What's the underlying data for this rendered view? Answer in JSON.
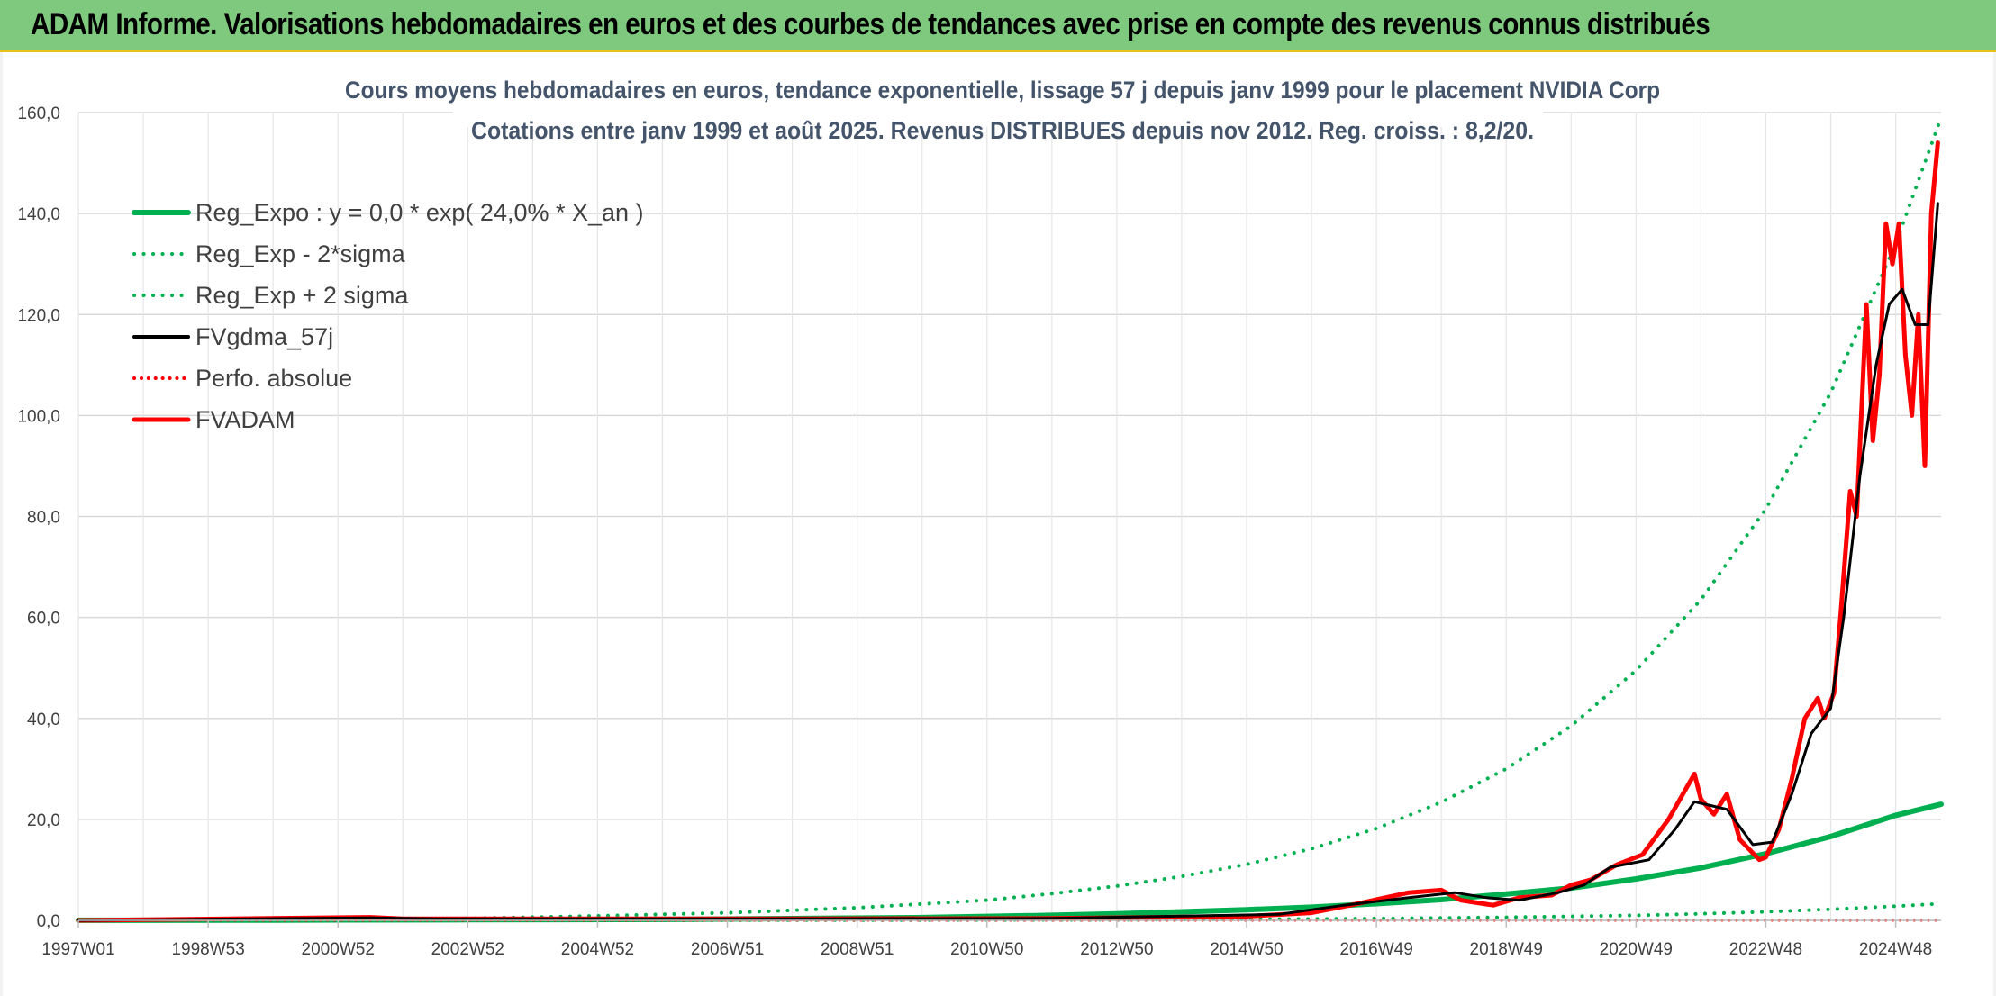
{
  "banner": {
    "title": "ADAM Informe. Valorisations hebdomadaires en euros et des courbes de tendances avec prise en compte des revenus connus distribués",
    "background_color": "#7fc97f"
  },
  "chart_data": {
    "type": "line",
    "title_line1": "Cours moyens hebdomadaires en euros, tendance exponentielle, lissage 57 j depuis janv 1999 pour le placement NVIDIA Corp",
    "title_line2": "Cotations entre janv 1999 et août 2025. Revenus DISTRIBUES depuis nov 2012. Reg. croiss. : 8,2/20.",
    "xlabel": "",
    "ylabel": "",
    "ylim": [
      0,
      160
    ],
    "xlim": [
      1997.0,
      2025.7
    ],
    "y_ticks": [
      "0,0",
      "20,0",
      "40,0",
      "60,0",
      "80,0",
      "100,0",
      "120,0",
      "140,0",
      "160,0"
    ],
    "y_tick_values": [
      0,
      20,
      40,
      60,
      80,
      100,
      120,
      140,
      160
    ],
    "x_ticks": [
      "1997W01",
      "1998W53",
      "2000W52",
      "2002W52",
      "2004W52",
      "2006W51",
      "2008W51",
      "2010W50",
      "2012W50",
      "2014W50",
      "2016W49",
      "2018W49",
      "2020W49",
      "2022W48",
      "2024W48"
    ],
    "x_tick_values": [
      1997.0,
      1999.0,
      2001.0,
      2003.0,
      2005.0,
      2007.0,
      2009.0,
      2011.0,
      2013.0,
      2015.0,
      2017.0,
      2019.0,
      2021.0,
      2023.0,
      2025.0
    ],
    "grid": true,
    "legend_position": "top-left",
    "series": [
      {
        "name": "Reg_Expo : y = 0,0 * exp( 24,0% *  X_an )",
        "color": "#00b050",
        "style": "solid",
        "width": 6,
        "x": [
          1997.0,
          2000.0,
          2003.0,
          2006.0,
          2008.0,
          2010.0,
          2012.0,
          2013.0,
          2014.0,
          2015.0,
          2016.0,
          2017.0,
          2018.0,
          2019.0,
          2020.0,
          2021.0,
          2022.0,
          2023.0,
          2024.0,
          2025.0,
          2025.7
        ],
        "y": [
          0.02,
          0.06,
          0.12,
          0.2,
          0.35,
          0.55,
          1.0,
          1.3,
          1.7,
          2.1,
          2.6,
          3.3,
          4.1,
          5.2,
          6.4,
          8.2,
          10.4,
          13.2,
          16.6,
          20.8,
          23.0
        ]
      },
      {
        "name": "Reg_Exp - 2*sigma",
        "color": "#00b050",
        "style": "dotted",
        "width": 4,
        "x": [
          1997.0,
          2005.0,
          2010.0,
          2013.0,
          2015.0,
          2017.0,
          2019.0,
          2021.0,
          2022.0,
          2023.0,
          2024.0,
          2025.0,
          2025.7
        ],
        "y": [
          0.0,
          0.02,
          0.05,
          0.1,
          0.2,
          0.35,
          0.6,
          1.0,
          1.3,
          1.7,
          2.2,
          2.8,
          3.3
        ]
      },
      {
        "name": "Reg_Exp + 2 sigma",
        "color": "#00b050",
        "style": "dotted",
        "width": 4,
        "x": [
          1997.0,
          2000.0,
          2003.0,
          2005.0,
          2007.0,
          2009.0,
          2011.0,
          2012.0,
          2013.0,
          2014.0,
          2015.0,
          2016.0,
          2017.0,
          2018.0,
          2019.0,
          2020.0,
          2021.0,
          2022.0,
          2023.0,
          2024.0,
          2025.0,
          2025.7
        ],
        "y": [
          0.1,
          0.2,
          0.4,
          0.9,
          1.5,
          2.5,
          4.0,
          5.3,
          6.8,
          8.7,
          11.1,
          14.2,
          18.2,
          23.4,
          30.0,
          38.5,
          49.5,
          63.5,
          81.5,
          104.5,
          134.0,
          159.0
        ]
      },
      {
        "name": "FVgdma_57j",
        "color": "#000000",
        "style": "solid",
        "width": 3,
        "x": [
          1997.0,
          2001.5,
          2002.5,
          2004.0,
          2008.0,
          2012.0,
          2015.5,
          2016.5,
          2017.5,
          2018.2,
          2018.7,
          2019.2,
          2019.8,
          2020.2,
          2020.6,
          2021.2,
          2021.6,
          2021.9,
          2022.4,
          2022.8,
          2023.1,
          2023.4,
          2023.7,
          2024.0,
          2024.2,
          2024.45,
          2024.7,
          2024.9,
          2025.1,
          2025.3,
          2025.5,
          2025.65
        ],
        "y": [
          0.0,
          0.5,
          0.3,
          0.3,
          0.3,
          0.4,
          1.2,
          3.0,
          4.5,
          5.5,
          4.5,
          4.0,
          5.5,
          7.0,
          10.5,
          12.0,
          18.0,
          23.5,
          22.0,
          15.0,
          15.5,
          25.0,
          37.0,
          42.0,
          60.0,
          88.0,
          110.0,
          122.0,
          125.0,
          118.0,
          118.0,
          142.0
        ]
      },
      {
        "name": "Perfo. absolue",
        "color": "#ff0000",
        "style": "dotted",
        "width": 3,
        "x": [
          1997.0,
          2025.7
        ],
        "y": [
          0.0,
          0.0
        ]
      },
      {
        "name": "FVADAM",
        "color": "#ff0000",
        "style": "solid",
        "width": 5,
        "x": [
          1997.0,
          2001.5,
          2002.0,
          2004.0,
          2008.0,
          2012.0,
          2015.0,
          2016.0,
          2016.6,
          2017.5,
          2018.0,
          2018.3,
          2018.8,
          2019.2,
          2019.7,
          2020.0,
          2020.3,
          2020.7,
          2021.1,
          2021.5,
          2021.9,
          2022.0,
          2022.2,
          2022.4,
          2022.6,
          2022.9,
          2023.0,
          2023.2,
          2023.4,
          2023.6,
          2023.8,
          2023.9,
          2024.05,
          2024.15,
          2024.3,
          2024.4,
          2024.55,
          2024.65,
          2024.75,
          2024.85,
          2024.95,
          2025.05,
          2025.15,
          2025.25,
          2025.35,
          2025.45,
          2025.55,
          2025.65
        ],
        "y": [
          0.0,
          0.6,
          0.3,
          0.3,
          0.3,
          0.4,
          0.8,
          1.5,
          3.0,
          5.5,
          6.0,
          4.0,
          3.0,
          4.5,
          5.0,
          7.0,
          8.0,
          11.0,
          13.0,
          20.0,
          29.0,
          24.0,
          21.0,
          25.0,
          16.0,
          12.0,
          12.5,
          18.0,
          28.0,
          40.0,
          44.0,
          40.0,
          45.0,
          60.0,
          85.0,
          80.0,
          122.0,
          95.0,
          108.0,
          138.0,
          130.0,
          138.0,
          112.0,
          100.0,
          120.0,
          90.0,
          140.0,
          154.0
        ]
      }
    ]
  }
}
